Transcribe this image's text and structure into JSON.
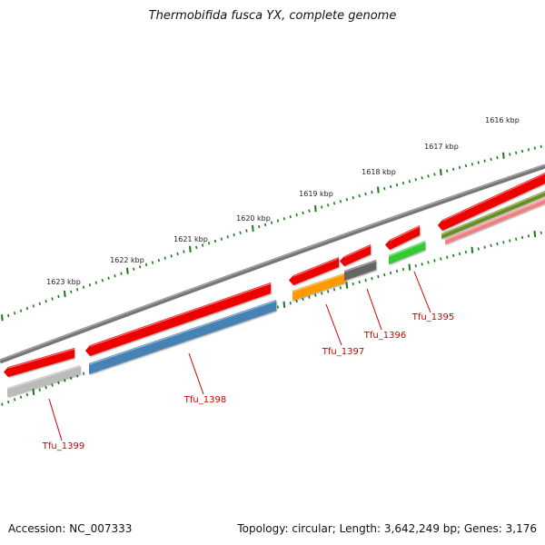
{
  "title": "Thermobifida fusca YX, complete genome",
  "accession": "Accession: NC_007333",
  "topology": "Topology: circular; Length: 3,642,249 bp; Genes: 3,176",
  "ruler": {
    "labels": [
      "1616 kbp",
      "1617 kbp",
      "1618 kbp",
      "1619 kbp",
      "1620 kbp",
      "1621 kbp",
      "1622 kbp",
      "1623 kbp"
    ]
  },
  "genes": [
    {
      "name": "Tfu_1395",
      "cds_color": "#33cc33"
    },
    {
      "name": "Tfu_1396",
      "cds_color": "#666666"
    },
    {
      "name": "Tfu_1397",
      "cds_color": "#ff9900"
    },
    {
      "name": "Tfu_1398",
      "cds_color": "#4682b4"
    },
    {
      "name": "Tfu_1399",
      "cds_color": "#bbbbbb"
    }
  ],
  "colors": {
    "backbone": "#777777",
    "gene_track": "#ee0000",
    "ruler": "#1a7a1a",
    "label": "#cc0000",
    "olive": "#6b8e23",
    "pink": "#f08080"
  }
}
